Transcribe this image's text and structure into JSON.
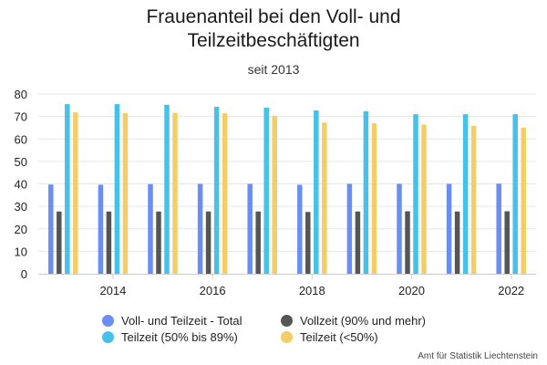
{
  "chart_data": {
    "type": "bar",
    "title": "Frauenanteil bei den Voll- und\nTeilzeitbeschäftigten",
    "subtitle": "seit 2013",
    "categories": [
      "2013",
      "2014",
      "2015",
      "2016",
      "2017",
      "2018",
      "2019",
      "2020",
      "2021",
      "2022"
    ],
    "x_tick_labels": [
      "2014",
      "2016",
      "2018",
      "2020",
      "2022"
    ],
    "y_ticks": [
      "0",
      "10",
      "20",
      "30",
      "40",
      "50",
      "60",
      "70",
      "80"
    ],
    "ylim": [
      0,
      80
    ],
    "grid": true,
    "legend_position": "bottom",
    "series": [
      {
        "name": "Voll- und Teilzeit - Total",
        "color": "#6b8ef5",
        "values": [
          39.7,
          39.6,
          39.9,
          40.0,
          40.0,
          39.6,
          40.0,
          40.0,
          40.0,
          40.1
        ]
      },
      {
        "name": "Vollzeit (90% und mehr)",
        "color": "#555555",
        "values": [
          27.7,
          27.7,
          27.7,
          27.7,
          27.7,
          27.5,
          27.7,
          27.8,
          27.7,
          27.8
        ]
      },
      {
        "name": "Teilzeit (50% bis 89%)",
        "color": "#45c1ea",
        "values": [
          75.5,
          75.5,
          75.2,
          74.3,
          73.9,
          72.7,
          72.3,
          71.0,
          71.0,
          71.0
        ]
      },
      {
        "name": "Teilzeit (<50%)",
        "color": "#f5cd66",
        "values": [
          71.8,
          71.5,
          71.6,
          71.4,
          70.3,
          67.3,
          67.0,
          66.4,
          65.8,
          65.0
        ]
      }
    ]
  },
  "legend_order": [
    0,
    1,
    2,
    3
  ],
  "credit": "Amt für Statistik Liechtenstein"
}
